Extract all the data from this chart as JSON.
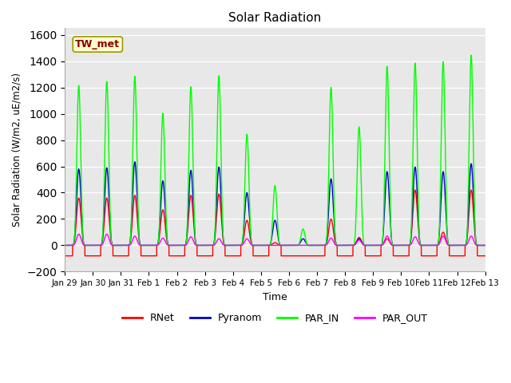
{
  "title": "Solar Radiation",
  "xlabel": "Time",
  "ylabel": "Solar Radiation (W/m2, uE/m2/s)",
  "ylim": [
    -200,
    1650
  ],
  "yticks": [
    -200,
    0,
    200,
    400,
    600,
    800,
    1000,
    1200,
    1400,
    1600
  ],
  "background_color": "#e8e8e8",
  "figure_color": "#ffffff",
  "station_label": "TW_met",
  "legend": [
    "RNet",
    "Pyranom",
    "PAR_IN",
    "PAR_OUT"
  ],
  "colors": {
    "RNet": "#ff0000",
    "Pyranom": "#0000cc",
    "PAR_IN": "#00ff00",
    "PAR_OUT": "#ff00ff"
  },
  "line_width": 1.0,
  "days": [
    "Jan 29",
    "Jan 30",
    "Jan 31",
    "Feb 1",
    "Feb 2",
    "Feb 3",
    "Feb 4",
    "Feb 5",
    "Feb 6",
    "Feb 7",
    "Feb 8",
    "Feb 9",
    "Feb 10",
    "Feb 11",
    "Feb 12",
    "Feb 13"
  ],
  "num_points_per_day": 288,
  "rnet_night": -80,
  "rnet_day_peaks": [
    360,
    360,
    380,
    270,
    380,
    390,
    190,
    20,
    -80,
    200,
    60,
    50,
    420,
    100,
    420
  ],
  "pyranom_day_peaks": [
    580,
    590,
    635,
    490,
    570,
    595,
    400,
    190,
    50,
    505,
    50,
    560,
    595,
    560,
    620
  ],
  "par_in_day_peaks": [
    1215,
    1245,
    1285,
    1005,
    1205,
    1290,
    845,
    455,
    125,
    1200,
    900,
    1360,
    1385,
    1395,
    1445
  ],
  "par_out_day_peaks": [
    85,
    85,
    70,
    55,
    65,
    50,
    50,
    0,
    0,
    55,
    40,
    70,
    65,
    70,
    70
  ]
}
